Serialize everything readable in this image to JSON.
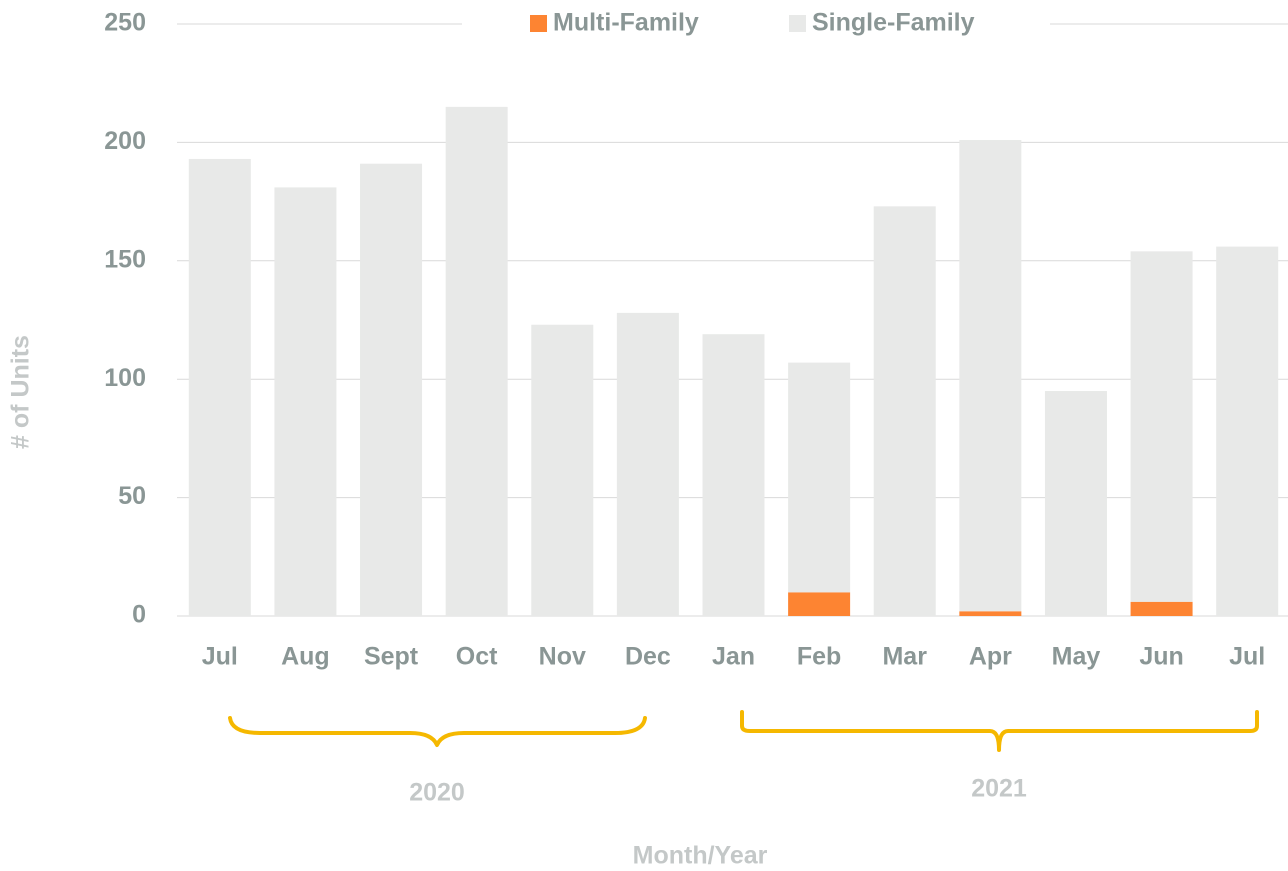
{
  "chart_data": {
    "type": "stacked_bar",
    "categories": [
      "Jul",
      "Aug",
      "Sept",
      "Oct",
      "Nov",
      "Dec",
      "Jan",
      "Feb",
      "Mar",
      "Apr",
      "May",
      "Jun",
      "Jul"
    ],
    "series": [
      {
        "name": "Multi-Family",
        "color": "#fd8432",
        "values": [
          0,
          0,
          0,
          0,
          0,
          0,
          0,
          10,
          0,
          2,
          0,
          6,
          0
        ]
      },
      {
        "name": "Single-Family",
        "color": "#e8e9e8",
        "values": [
          193,
          181,
          191,
          215,
          123,
          128,
          119,
          97,
          173,
          199,
          95,
          148,
          156
        ]
      }
    ],
    "ylim": [
      0,
      250
    ],
    "yticks": [
      0,
      50,
      100,
      150,
      200,
      250
    ],
    "grid": true,
    "legend": "top",
    "xlabel": "Month/Year",
    "ylabel": "# of Units",
    "annotations": [
      "2020",
      "2021"
    ]
  }
}
